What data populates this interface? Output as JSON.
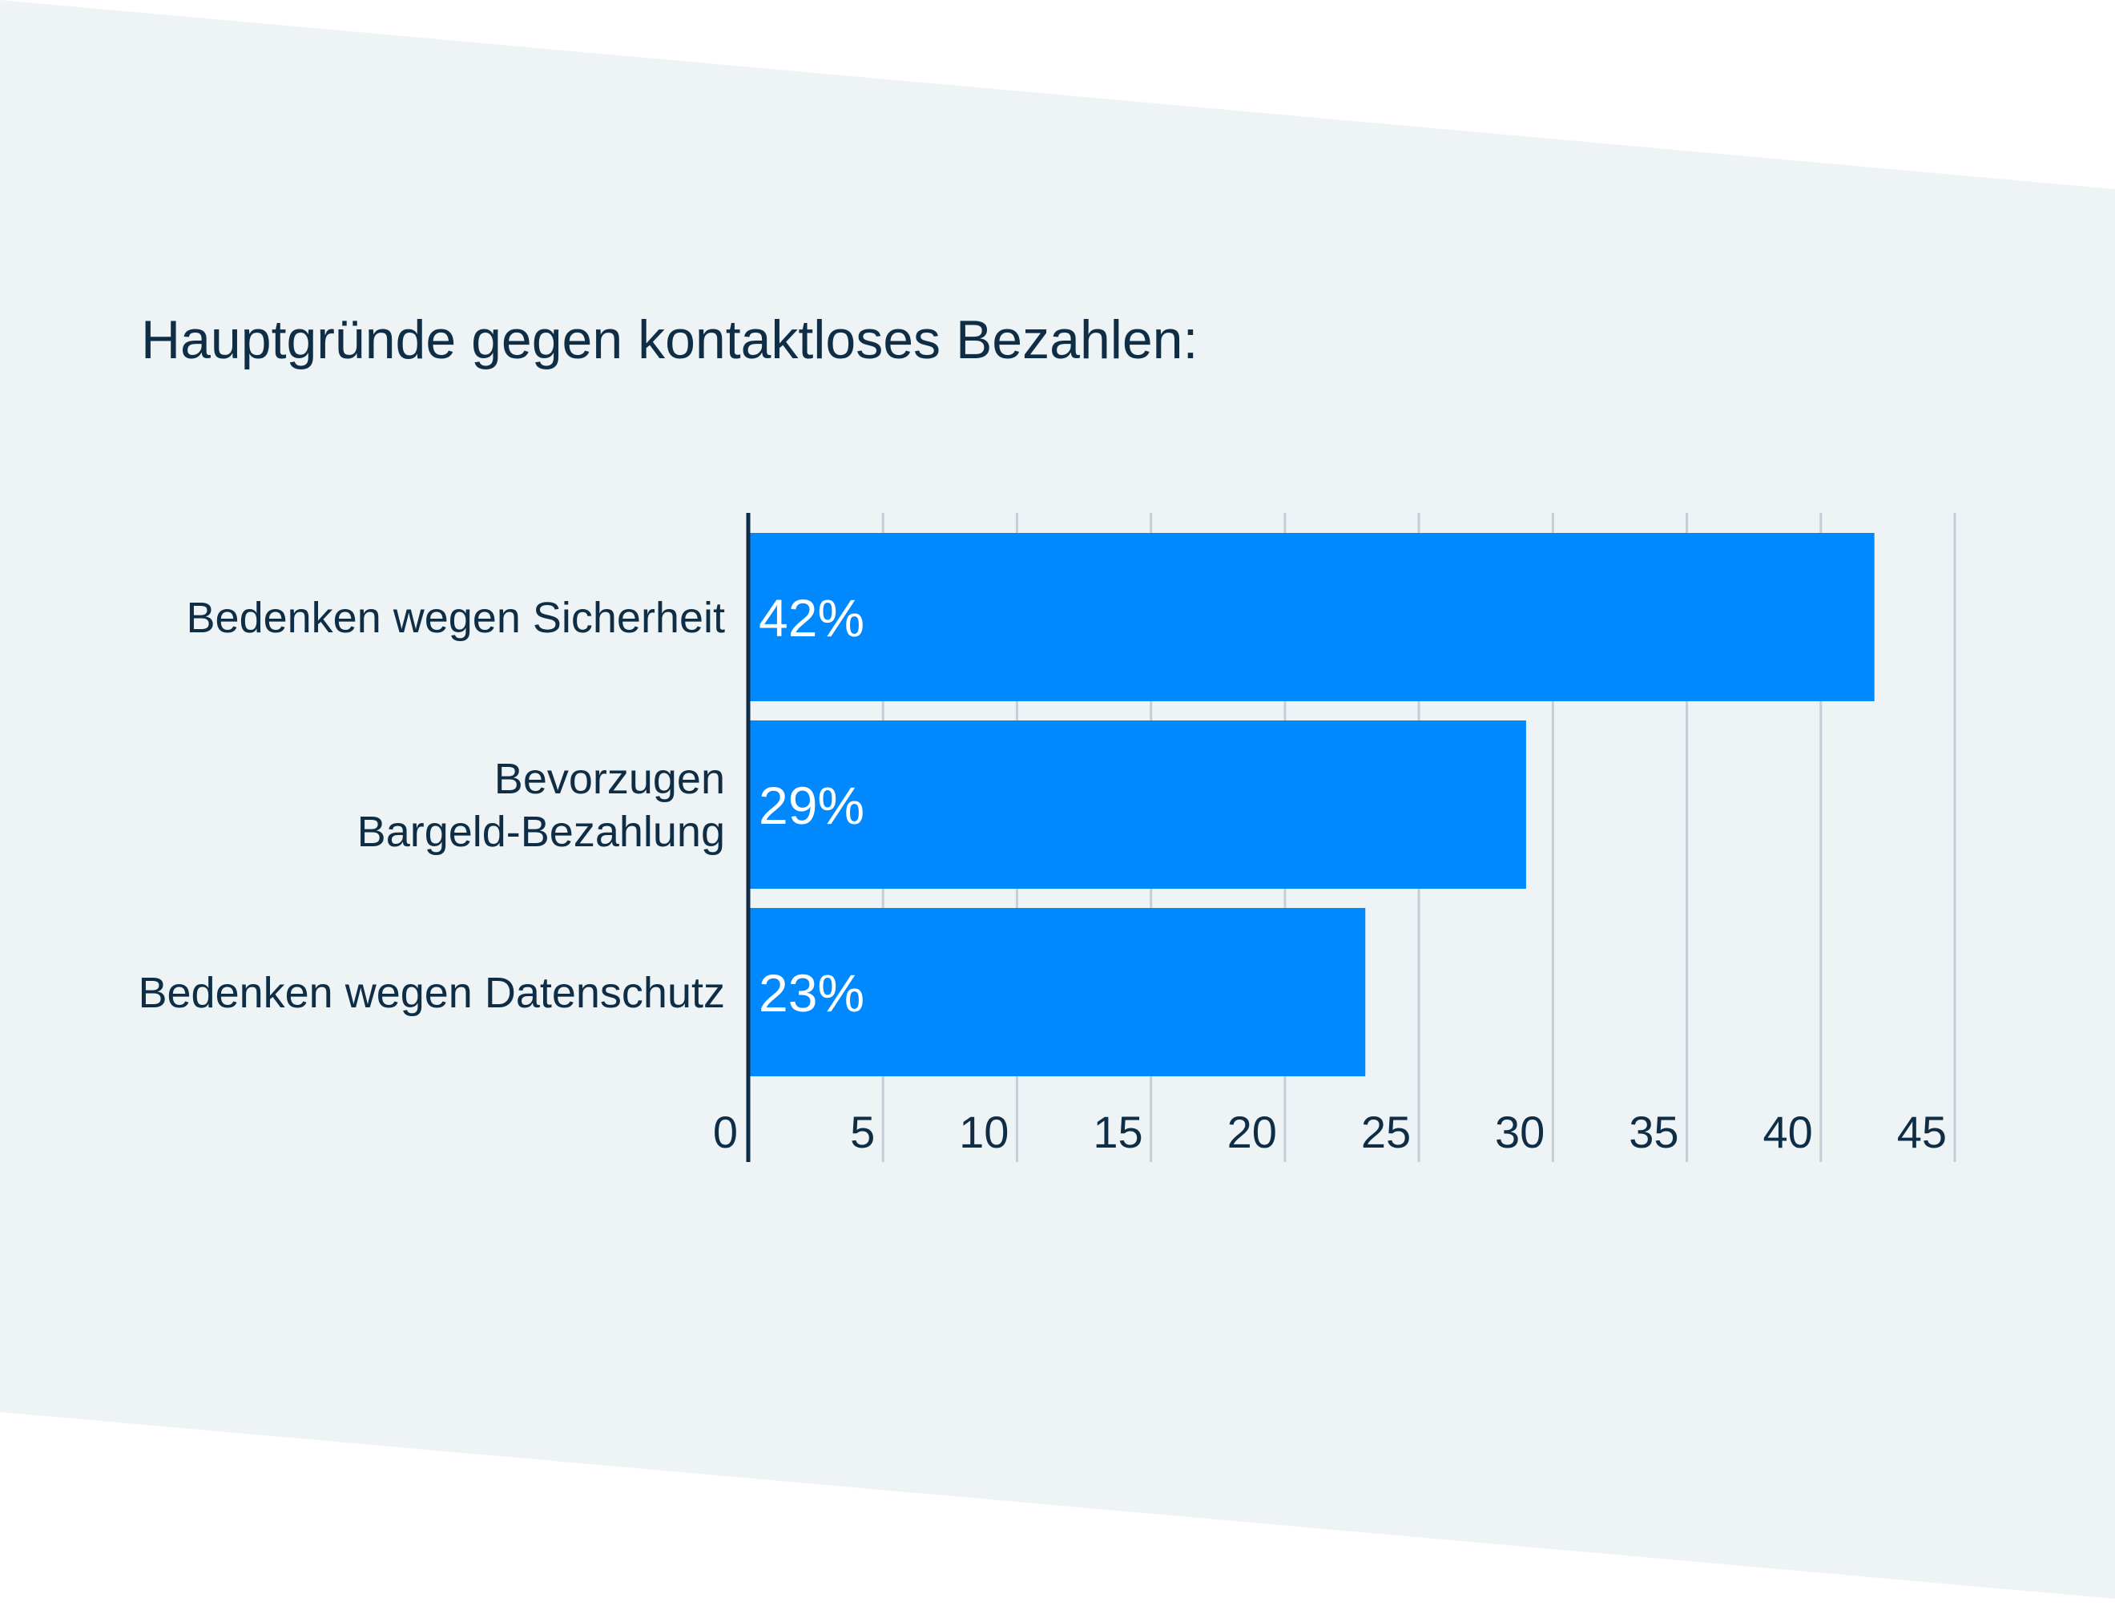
{
  "colors": {
    "background_panel": "#eef3f6",
    "bar": "#0088ff",
    "text": "#0f2e45",
    "gridline": "#c6ced8",
    "axis": "#0f2e45",
    "data_label": "#ffffff"
  },
  "chart_data": {
    "type": "bar",
    "orientation": "horizontal",
    "title": "Hauptgründe gegen kontaktloses Bezahlen:",
    "categories": [
      [
        "Bedenken wegen Sicherheit"
      ],
      [
        "Bevorzugen",
        "Bargeld-Bezahlung"
      ],
      [
        "Bedenken wegen Datenschutz"
      ]
    ],
    "values": [
      42,
      29,
      23
    ],
    "data_labels": [
      "42%",
      "29%",
      "23%"
    ],
    "xlim": [
      0,
      45
    ],
    "x_ticks": [
      0,
      5,
      10,
      15,
      20,
      25,
      30,
      35,
      40,
      45
    ],
    "x_tick_labels": [
      "0",
      "5",
      "10",
      "15",
      "20",
      "25",
      "30",
      "35",
      "40",
      "45"
    ],
    "grid": true,
    "legend": "none"
  }
}
